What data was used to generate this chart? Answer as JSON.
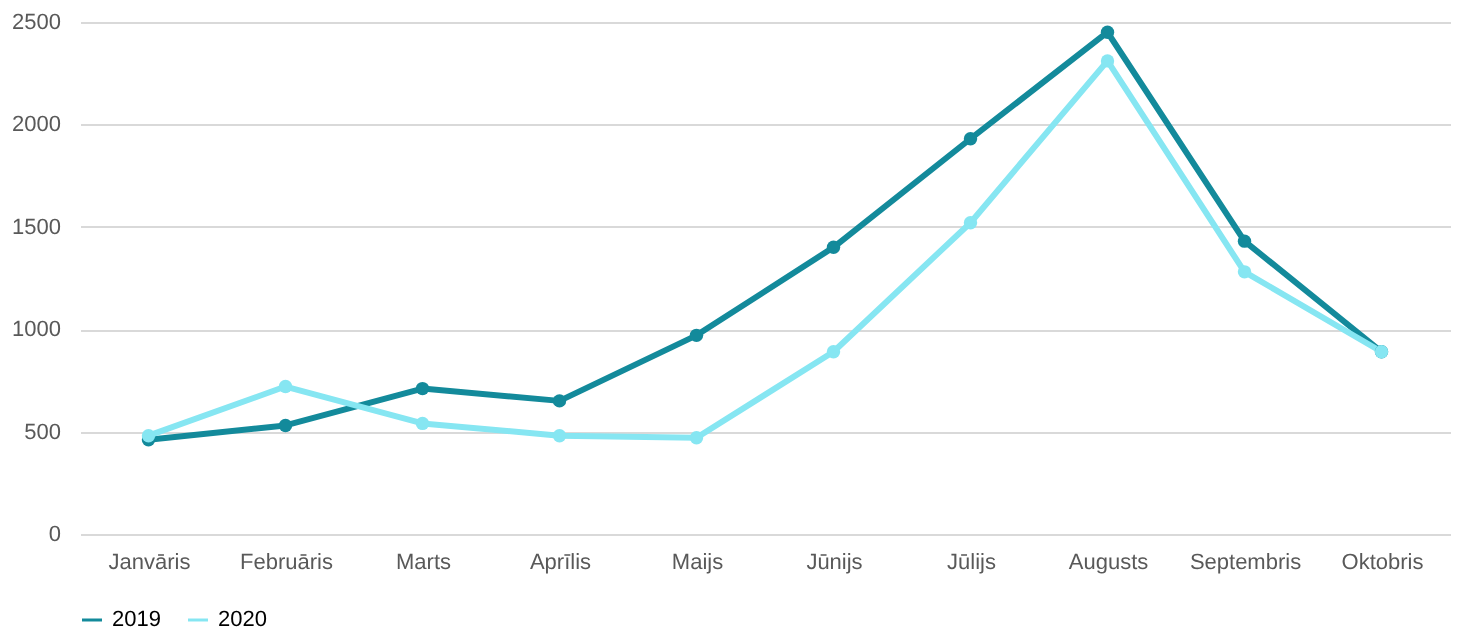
{
  "chart_data": {
    "type": "line",
    "categories": [
      "Janvāris",
      "Februāris",
      "Marts",
      "Aprīlis",
      "Maijs",
      "Jūnijs",
      "Jūlijs",
      "Augusts",
      "Septembris",
      "Oktobris"
    ],
    "series": [
      {
        "name": "2019",
        "color": "#138a9b",
        "values": [
          460,
          530,
          710,
          650,
          970,
          1400,
          1930,
          2450,
          1430,
          890
        ]
      },
      {
        "name": "2020",
        "color": "#86e6f2",
        "values": [
          480,
          720,
          540,
          480,
          470,
          890,
          1520,
          2310,
          1280,
          890
        ]
      }
    ],
    "ylim": [
      0,
      2500
    ],
    "yticks": [
      0,
      500,
      1000,
      1500,
      2000,
      2500
    ],
    "grid": "y",
    "legend": "bottom",
    "marker": "circle",
    "line_style": "solid"
  }
}
